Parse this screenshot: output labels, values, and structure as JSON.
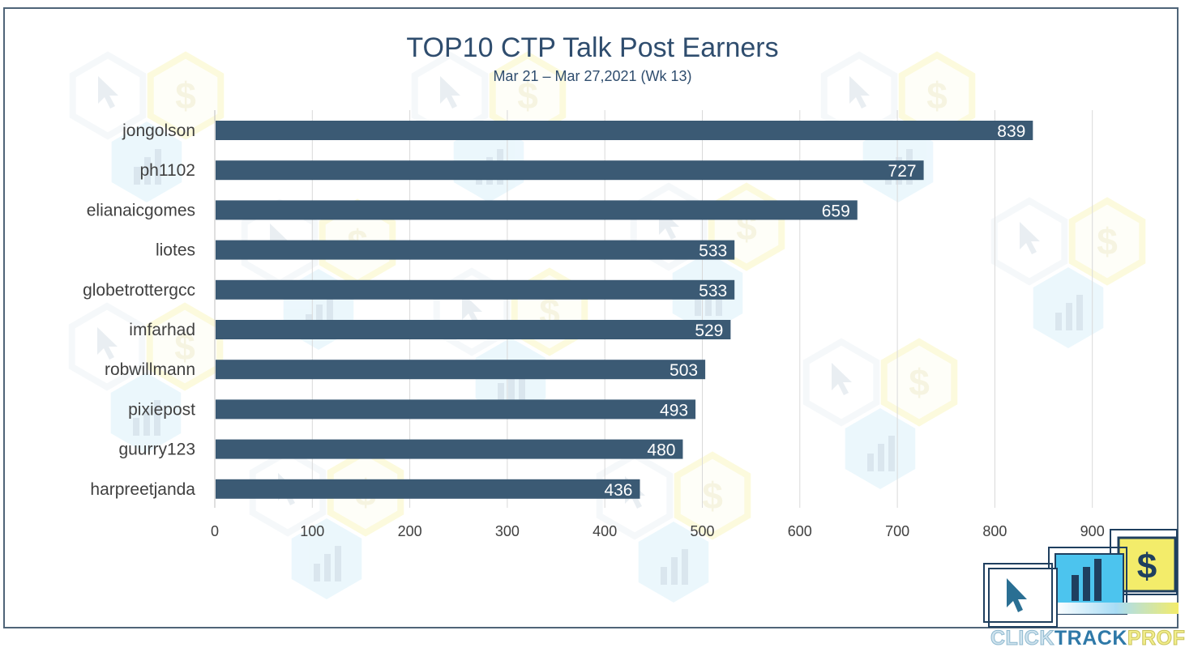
{
  "chart_data": {
    "type": "bar",
    "orientation": "horizontal",
    "title": "TOP10 CTP Talk Post Earners",
    "subtitle": "Mar 21 – Mar 27,2021 (Wk 13)",
    "categories": [
      "jongolson",
      "ph1102",
      "elianaicgomes",
      "liotes",
      "globetrottergcc",
      "imfarhad",
      "robwillmann",
      "pixiepost",
      "guurry123",
      "harpreetjanda"
    ],
    "values": [
      839,
      727,
      659,
      533,
      533,
      529,
      503,
      493,
      480,
      436
    ],
    "xlim": [
      0,
      900
    ],
    "xticks": [
      "0",
      "100",
      "200",
      "300",
      "400",
      "500",
      "600",
      "700",
      "800",
      "900"
    ],
    "grid": true,
    "bar_color": "#3b5a74",
    "data_labels": true
  },
  "logo": {
    "text_part1": "CLICK",
    "text_part2": "TRACK",
    "text_part3": "PROFIT",
    "colors": {
      "light_blue": "#a8dcf5",
      "mid_blue": "#4cc4ee",
      "yellow": "#f3ec6a",
      "navy": "#1f3f5f"
    }
  }
}
